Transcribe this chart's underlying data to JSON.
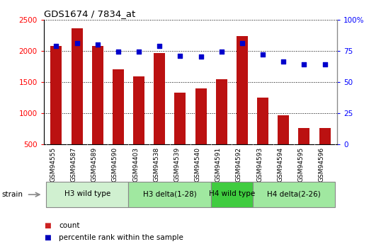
{
  "title": "GDS1674 / 7834_at",
  "samples": [
    "GSM94555",
    "GSM94587",
    "GSM94589",
    "GSM94590",
    "GSM94403",
    "GSM94538",
    "GSM94539",
    "GSM94540",
    "GSM94591",
    "GSM94592",
    "GSM94593",
    "GSM94594",
    "GSM94595",
    "GSM94596"
  ],
  "counts": [
    2080,
    2360,
    2070,
    1700,
    1590,
    1960,
    1330,
    1390,
    1540,
    2230,
    1250,
    960,
    760,
    760
  ],
  "percentiles": [
    79,
    81,
    80,
    74,
    74,
    79,
    71,
    70,
    74,
    81,
    72,
    66,
    64,
    64
  ],
  "groups": [
    {
      "label": "H3 wild type",
      "start": 0,
      "end": 4,
      "color": "#d0f0d0"
    },
    {
      "label": "H3 delta(1-28)",
      "start": 4,
      "end": 8,
      "color": "#a0e8a0"
    },
    {
      "label": "H4 wild type",
      "start": 8,
      "end": 10,
      "color": "#40cc40"
    },
    {
      "label": "H4 delta(2-26)",
      "start": 10,
      "end": 14,
      "color": "#a0e8a0"
    }
  ],
  "bar_color": "#bb1111",
  "dot_color": "#0000cc",
  "ylim_left": [
    500,
    2500
  ],
  "ylim_right": [
    0,
    100
  ],
  "yticks_left": [
    500,
    1000,
    1500,
    2000,
    2500
  ],
  "yticks_right": [
    0,
    25,
    50,
    75,
    100
  ],
  "xtick_bg": "#c8c8c8",
  "legend_bar_color": "#cc2222",
  "legend_dot_color": "#0000bb"
}
